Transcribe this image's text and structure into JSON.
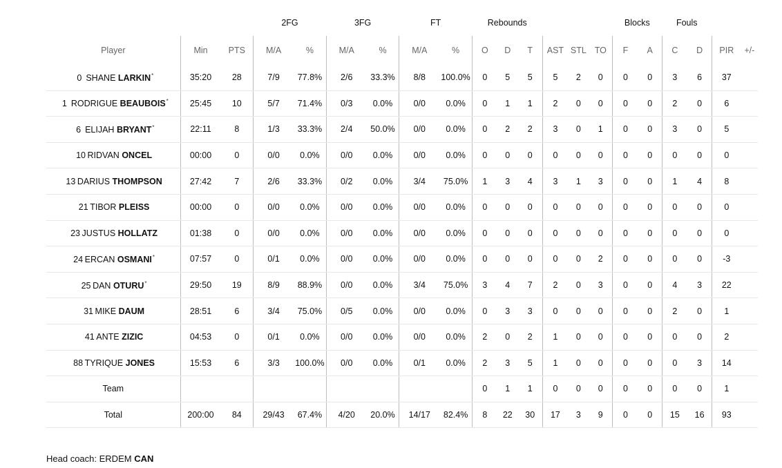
{
  "groups": {
    "fg2": "2FG",
    "fg3": "3FG",
    "ft": "FT",
    "rebounds": "Rebounds",
    "blocks": "Blocks",
    "fouls": "Fouls"
  },
  "headers": {
    "player": "Player",
    "min": "Min",
    "pts": "PTS",
    "fg2_ma": "M/A",
    "fg2_pct": "%",
    "fg3_ma": "M/A",
    "fg3_pct": "%",
    "ft_ma": "M/A",
    "ft_pct": "%",
    "reb_o": "O",
    "reb_d": "D",
    "reb_t": "T",
    "ast": "AST",
    "stl": "STL",
    "to": "TO",
    "blk_f": "F",
    "blk_a": "A",
    "foul_c": "C",
    "foul_d": "D",
    "pir": "PIR",
    "pm": "+/-"
  },
  "players": [
    {
      "num": "0",
      "first": "SHANE",
      "last": "LARKIN",
      "starter": true,
      "star": "*",
      "min": "35:20",
      "pts": "28",
      "fg2_ma": "7/9",
      "fg2_pct": "77.8%",
      "fg3_ma": "2/6",
      "fg3_pct": "33.3%",
      "ft_ma": "8/8",
      "ft_pct": "100.0%",
      "reb_o": "0",
      "reb_d": "5",
      "reb_t": "5",
      "ast": "5",
      "stl": "2",
      "to": "0",
      "blk_f": "0",
      "blk_a": "0",
      "foul_c": "3",
      "foul_d": "6",
      "pir": "37",
      "pm": ""
    },
    {
      "num": "1",
      "first": "RODRIGUE",
      "last": "BEAUBOIS",
      "starter": true,
      "star": "*",
      "min": "25:45",
      "pts": "10",
      "fg2_ma": "5/7",
      "fg2_pct": "71.4%",
      "fg3_ma": "0/3",
      "fg3_pct": "0.0%",
      "ft_ma": "0/0",
      "ft_pct": "0.0%",
      "reb_o": "0",
      "reb_d": "1",
      "reb_t": "1",
      "ast": "2",
      "stl": "0",
      "to": "0",
      "blk_f": "0",
      "blk_a": "0",
      "foul_c": "2",
      "foul_d": "0",
      "pir": "6",
      "pm": ""
    },
    {
      "num": "6",
      "first": "ELIJAH",
      "last": "BRYANT",
      "starter": true,
      "star": "*",
      "min": "22:11",
      "pts": "8",
      "fg2_ma": "1/3",
      "fg2_pct": "33.3%",
      "fg3_ma": "2/4",
      "fg3_pct": "50.0%",
      "ft_ma": "0/0",
      "ft_pct": "0.0%",
      "reb_o": "0",
      "reb_d": "2",
      "reb_t": "2",
      "ast": "3",
      "stl": "0",
      "to": "1",
      "blk_f": "0",
      "blk_a": "0",
      "foul_c": "3",
      "foul_d": "0",
      "pir": "5",
      "pm": ""
    },
    {
      "num": "10",
      "first": "RIDVAN",
      "last": "ONCEL",
      "starter": false,
      "star": "",
      "min": "00:00",
      "pts": "0",
      "fg2_ma": "0/0",
      "fg2_pct": "0.0%",
      "fg3_ma": "0/0",
      "fg3_pct": "0.0%",
      "ft_ma": "0/0",
      "ft_pct": "0.0%",
      "reb_o": "0",
      "reb_d": "0",
      "reb_t": "0",
      "ast": "0",
      "stl": "0",
      "to": "0",
      "blk_f": "0",
      "blk_a": "0",
      "foul_c": "0",
      "foul_d": "0",
      "pir": "0",
      "pm": ""
    },
    {
      "num": "13",
      "first": "DARIUS",
      "last": "THOMPSON",
      "starter": false,
      "star": "",
      "min": "27:42",
      "pts": "7",
      "fg2_ma": "2/6",
      "fg2_pct": "33.3%",
      "fg3_ma": "0/2",
      "fg3_pct": "0.0%",
      "ft_ma": "3/4",
      "ft_pct": "75.0%",
      "reb_o": "1",
      "reb_d": "3",
      "reb_t": "4",
      "ast": "3",
      "stl": "1",
      "to": "3",
      "blk_f": "0",
      "blk_a": "0",
      "foul_c": "1",
      "foul_d": "4",
      "pir": "8",
      "pm": ""
    },
    {
      "num": "21",
      "first": "TIBOR",
      "last": "PLEISS",
      "starter": false,
      "star": "",
      "min": "00:00",
      "pts": "0",
      "fg2_ma": "0/0",
      "fg2_pct": "0.0%",
      "fg3_ma": "0/0",
      "fg3_pct": "0.0%",
      "ft_ma": "0/0",
      "ft_pct": "0.0%",
      "reb_o": "0",
      "reb_d": "0",
      "reb_t": "0",
      "ast": "0",
      "stl": "0",
      "to": "0",
      "blk_f": "0",
      "blk_a": "0",
      "foul_c": "0",
      "foul_d": "0",
      "pir": "0",
      "pm": ""
    },
    {
      "num": "23",
      "first": "JUSTUS",
      "last": "HOLLATZ",
      "starter": false,
      "star": "",
      "min": "01:38",
      "pts": "0",
      "fg2_ma": "0/0",
      "fg2_pct": "0.0%",
      "fg3_ma": "0/0",
      "fg3_pct": "0.0%",
      "ft_ma": "0/0",
      "ft_pct": "0.0%",
      "reb_o": "0",
      "reb_d": "0",
      "reb_t": "0",
      "ast": "0",
      "stl": "0",
      "to": "0",
      "blk_f": "0",
      "blk_a": "0",
      "foul_c": "0",
      "foul_d": "0",
      "pir": "0",
      "pm": ""
    },
    {
      "num": "24",
      "first": "ERCAN",
      "last": "OSMANI",
      "starter": true,
      "star": "*",
      "min": "07:57",
      "pts": "0",
      "fg2_ma": "0/1",
      "fg2_pct": "0.0%",
      "fg3_ma": "0/0",
      "fg3_pct": "0.0%",
      "ft_ma": "0/0",
      "ft_pct": "0.0%",
      "reb_o": "0",
      "reb_d": "0",
      "reb_t": "0",
      "ast": "0",
      "stl": "0",
      "to": "2",
      "blk_f": "0",
      "blk_a": "0",
      "foul_c": "0",
      "foul_d": "0",
      "pir": "-3",
      "pm": ""
    },
    {
      "num": "25",
      "first": "DAN",
      "last": "OTURU",
      "starter": true,
      "star": "*",
      "min": "29:50",
      "pts": "19",
      "fg2_ma": "8/9",
      "fg2_pct": "88.9%",
      "fg3_ma": "0/0",
      "fg3_pct": "0.0%",
      "ft_ma": "3/4",
      "ft_pct": "75.0%",
      "reb_o": "3",
      "reb_d": "4",
      "reb_t": "7",
      "ast": "2",
      "stl": "0",
      "to": "3",
      "blk_f": "0",
      "blk_a": "0",
      "foul_c": "4",
      "foul_d": "3",
      "pir": "22",
      "pm": ""
    },
    {
      "num": "31",
      "first": "MIKE",
      "last": "DAUM",
      "starter": false,
      "star": "",
      "min": "28:51",
      "pts": "6",
      "fg2_ma": "3/4",
      "fg2_pct": "75.0%",
      "fg3_ma": "0/5",
      "fg3_pct": "0.0%",
      "ft_ma": "0/0",
      "ft_pct": "0.0%",
      "reb_o": "0",
      "reb_d": "3",
      "reb_t": "3",
      "ast": "0",
      "stl": "0",
      "to": "0",
      "blk_f": "0",
      "blk_a": "0",
      "foul_c": "2",
      "foul_d": "0",
      "pir": "1",
      "pm": ""
    },
    {
      "num": "41",
      "first": "ANTE",
      "last": "ZIZIC",
      "starter": false,
      "star": "",
      "min": "04:53",
      "pts": "0",
      "fg2_ma": "0/1",
      "fg2_pct": "0.0%",
      "fg3_ma": "0/0",
      "fg3_pct": "0.0%",
      "ft_ma": "0/0",
      "ft_pct": "0.0%",
      "reb_o": "2",
      "reb_d": "0",
      "reb_t": "2",
      "ast": "1",
      "stl": "0",
      "to": "0",
      "blk_f": "0",
      "blk_a": "0",
      "foul_c": "0",
      "foul_d": "0",
      "pir": "2",
      "pm": ""
    },
    {
      "num": "88",
      "first": "TYRIQUE",
      "last": "JONES",
      "starter": false,
      "star": "",
      "min": "15:53",
      "pts": "6",
      "fg2_ma": "3/3",
      "fg2_pct": "100.0%",
      "fg3_ma": "0/0",
      "fg3_pct": "0.0%",
      "ft_ma": "0/1",
      "ft_pct": "0.0%",
      "reb_o": "2",
      "reb_d": "3",
      "reb_t": "5",
      "ast": "1",
      "stl": "0",
      "to": "0",
      "blk_f": "0",
      "blk_a": "0",
      "foul_c": "0",
      "foul_d": "3",
      "pir": "14",
      "pm": ""
    }
  ],
  "team": {
    "label": "Team",
    "min": "",
    "pts": "",
    "fg2_ma": "",
    "fg2_pct": "",
    "fg3_ma": "",
    "fg3_pct": "",
    "ft_ma": "",
    "ft_pct": "",
    "reb_o": "0",
    "reb_d": "1",
    "reb_t": "1",
    "ast": "0",
    "stl": "0",
    "to": "0",
    "blk_f": "0",
    "blk_a": "0",
    "foul_c": "0",
    "foul_d": "0",
    "pir": "1",
    "pm": ""
  },
  "total": {
    "label": "Total",
    "min": "200:00",
    "pts": "84",
    "fg2_ma": "29/43",
    "fg2_pct": "67.4%",
    "fg3_ma": "4/20",
    "fg3_pct": "20.0%",
    "ft_ma": "14/17",
    "ft_pct": "82.4%",
    "reb_o": "8",
    "reb_d": "22",
    "reb_t": "30",
    "ast": "17",
    "stl": "3",
    "to": "9",
    "blk_f": "0",
    "blk_a": "0",
    "foul_c": "15",
    "foul_d": "16",
    "pir": "93",
    "pm": ""
  },
  "coach": {
    "label": "Head coach:",
    "first": "ERDEM",
    "last": "CAN"
  }
}
